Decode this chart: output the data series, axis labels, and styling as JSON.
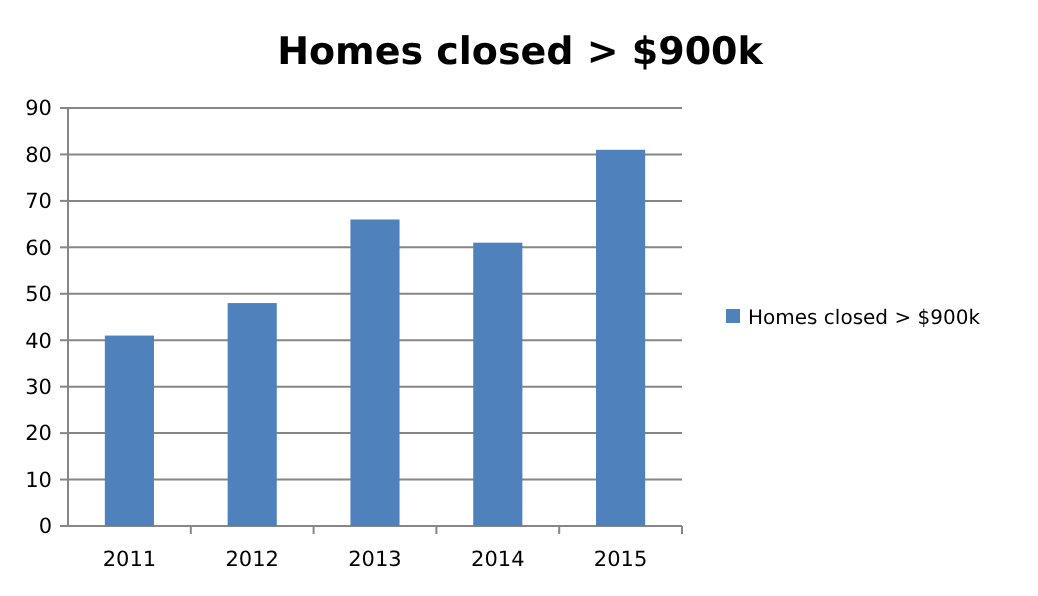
{
  "chart_data": {
    "type": "bar",
    "title": "Homes closed > $900k",
    "categories": [
      "2011",
      "2012",
      "2013",
      "2014",
      "2015"
    ],
    "series": [
      {
        "name": "Homes closed > $900k",
        "color": "#4f81bd",
        "values": [
          41,
          48,
          66,
          61,
          81
        ]
      }
    ],
    "ylim": [
      0,
      90
    ],
    "yticks": [
      0,
      10,
      20,
      30,
      40,
      50,
      60,
      70,
      80,
      90
    ],
    "grid": "y",
    "legend": "right"
  }
}
